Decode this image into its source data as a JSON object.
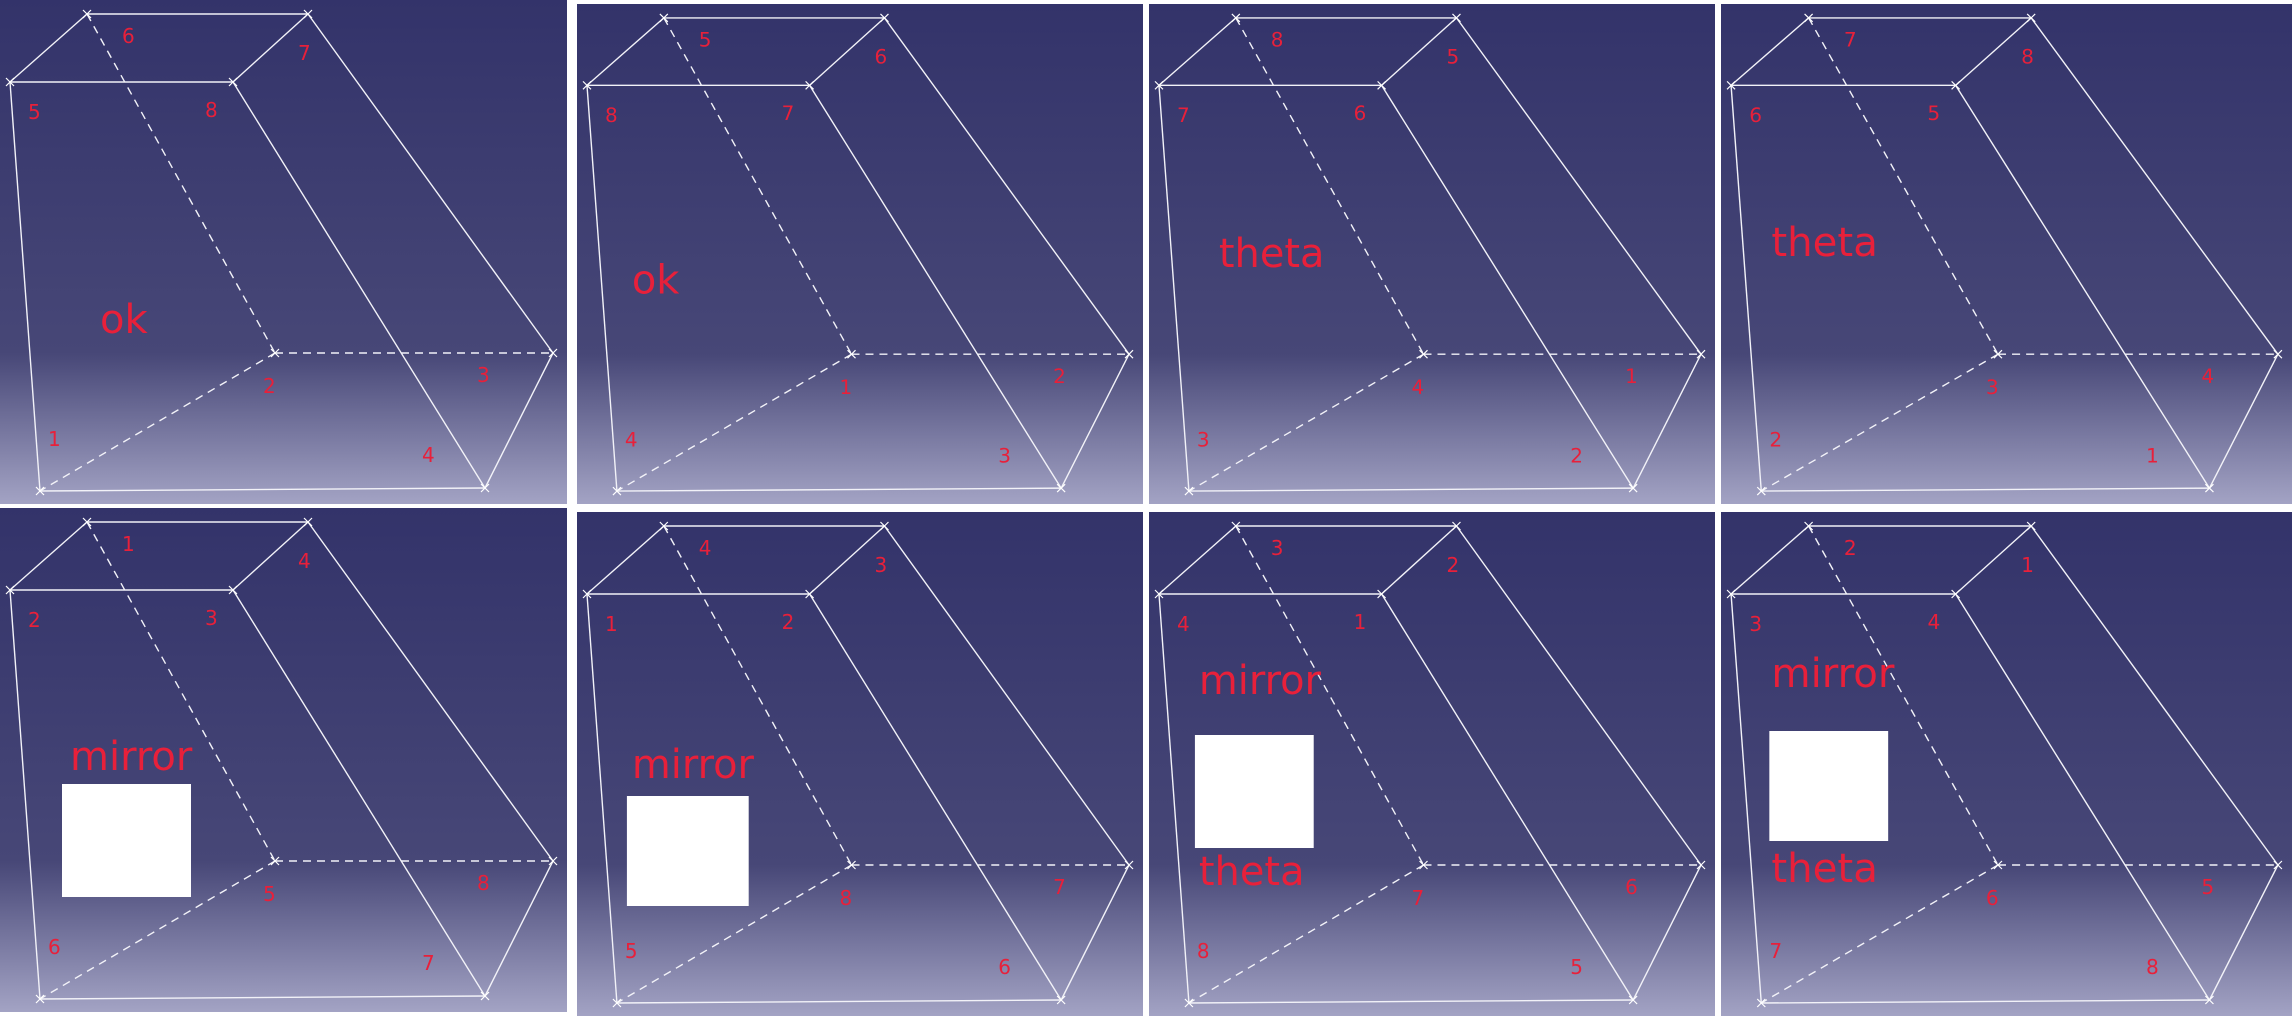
{
  "colors": {
    "bg_top": "#33336a",
    "bg_mid": "#474777",
    "bg_bottom": "#a3a3c4",
    "edge": "#f2f2f8",
    "label": "#e8203a",
    "separator": "#ffffff"
  },
  "panels": [
    {
      "id": "top-1",
      "labels": [
        "1",
        "2",
        "3",
        "4",
        "5",
        "6",
        "7",
        "8"
      ],
      "captions": [
        "ok"
      ],
      "mirror_box": false
    },
    {
      "id": "top-2",
      "labels": [
        "4",
        "1",
        "2",
        "3",
        "8",
        "5",
        "6",
        "7"
      ],
      "captions": [
        "ok"
      ],
      "mirror_box": false
    },
    {
      "id": "top-3",
      "labels": [
        "3",
        "4",
        "1",
        "2",
        "7",
        "8",
        "5",
        "6"
      ],
      "captions": [
        "theta"
      ],
      "mirror_box": false
    },
    {
      "id": "top-4",
      "labels": [
        "2",
        "3",
        "4",
        "1",
        "6",
        "7",
        "8",
        "5"
      ],
      "captions": [
        "theta"
      ],
      "mirror_box": false
    },
    {
      "id": "bottom-1",
      "labels": [
        "6",
        "5",
        "8",
        "7",
        "2",
        "1",
        "4",
        "3"
      ],
      "captions": [
        "mirror"
      ],
      "mirror_box": true
    },
    {
      "id": "bottom-2",
      "labels": [
        "5",
        "8",
        "7",
        "6",
        "1",
        "4",
        "3",
        "2"
      ],
      "captions": [
        "mirror"
      ],
      "mirror_box": true
    },
    {
      "id": "bottom-3",
      "labels": [
        "8",
        "7",
        "6",
        "5",
        "4",
        "3",
        "2",
        "1"
      ],
      "captions": [
        "mirror",
        "theta"
      ],
      "mirror_box": true
    },
    {
      "id": "bottom-4",
      "labels": [
        "7",
        "6",
        "5",
        "8",
        "3",
        "2",
        "1",
        "4"
      ],
      "captions": [
        "mirror",
        "theta"
      ],
      "mirror_box": true
    }
  ]
}
